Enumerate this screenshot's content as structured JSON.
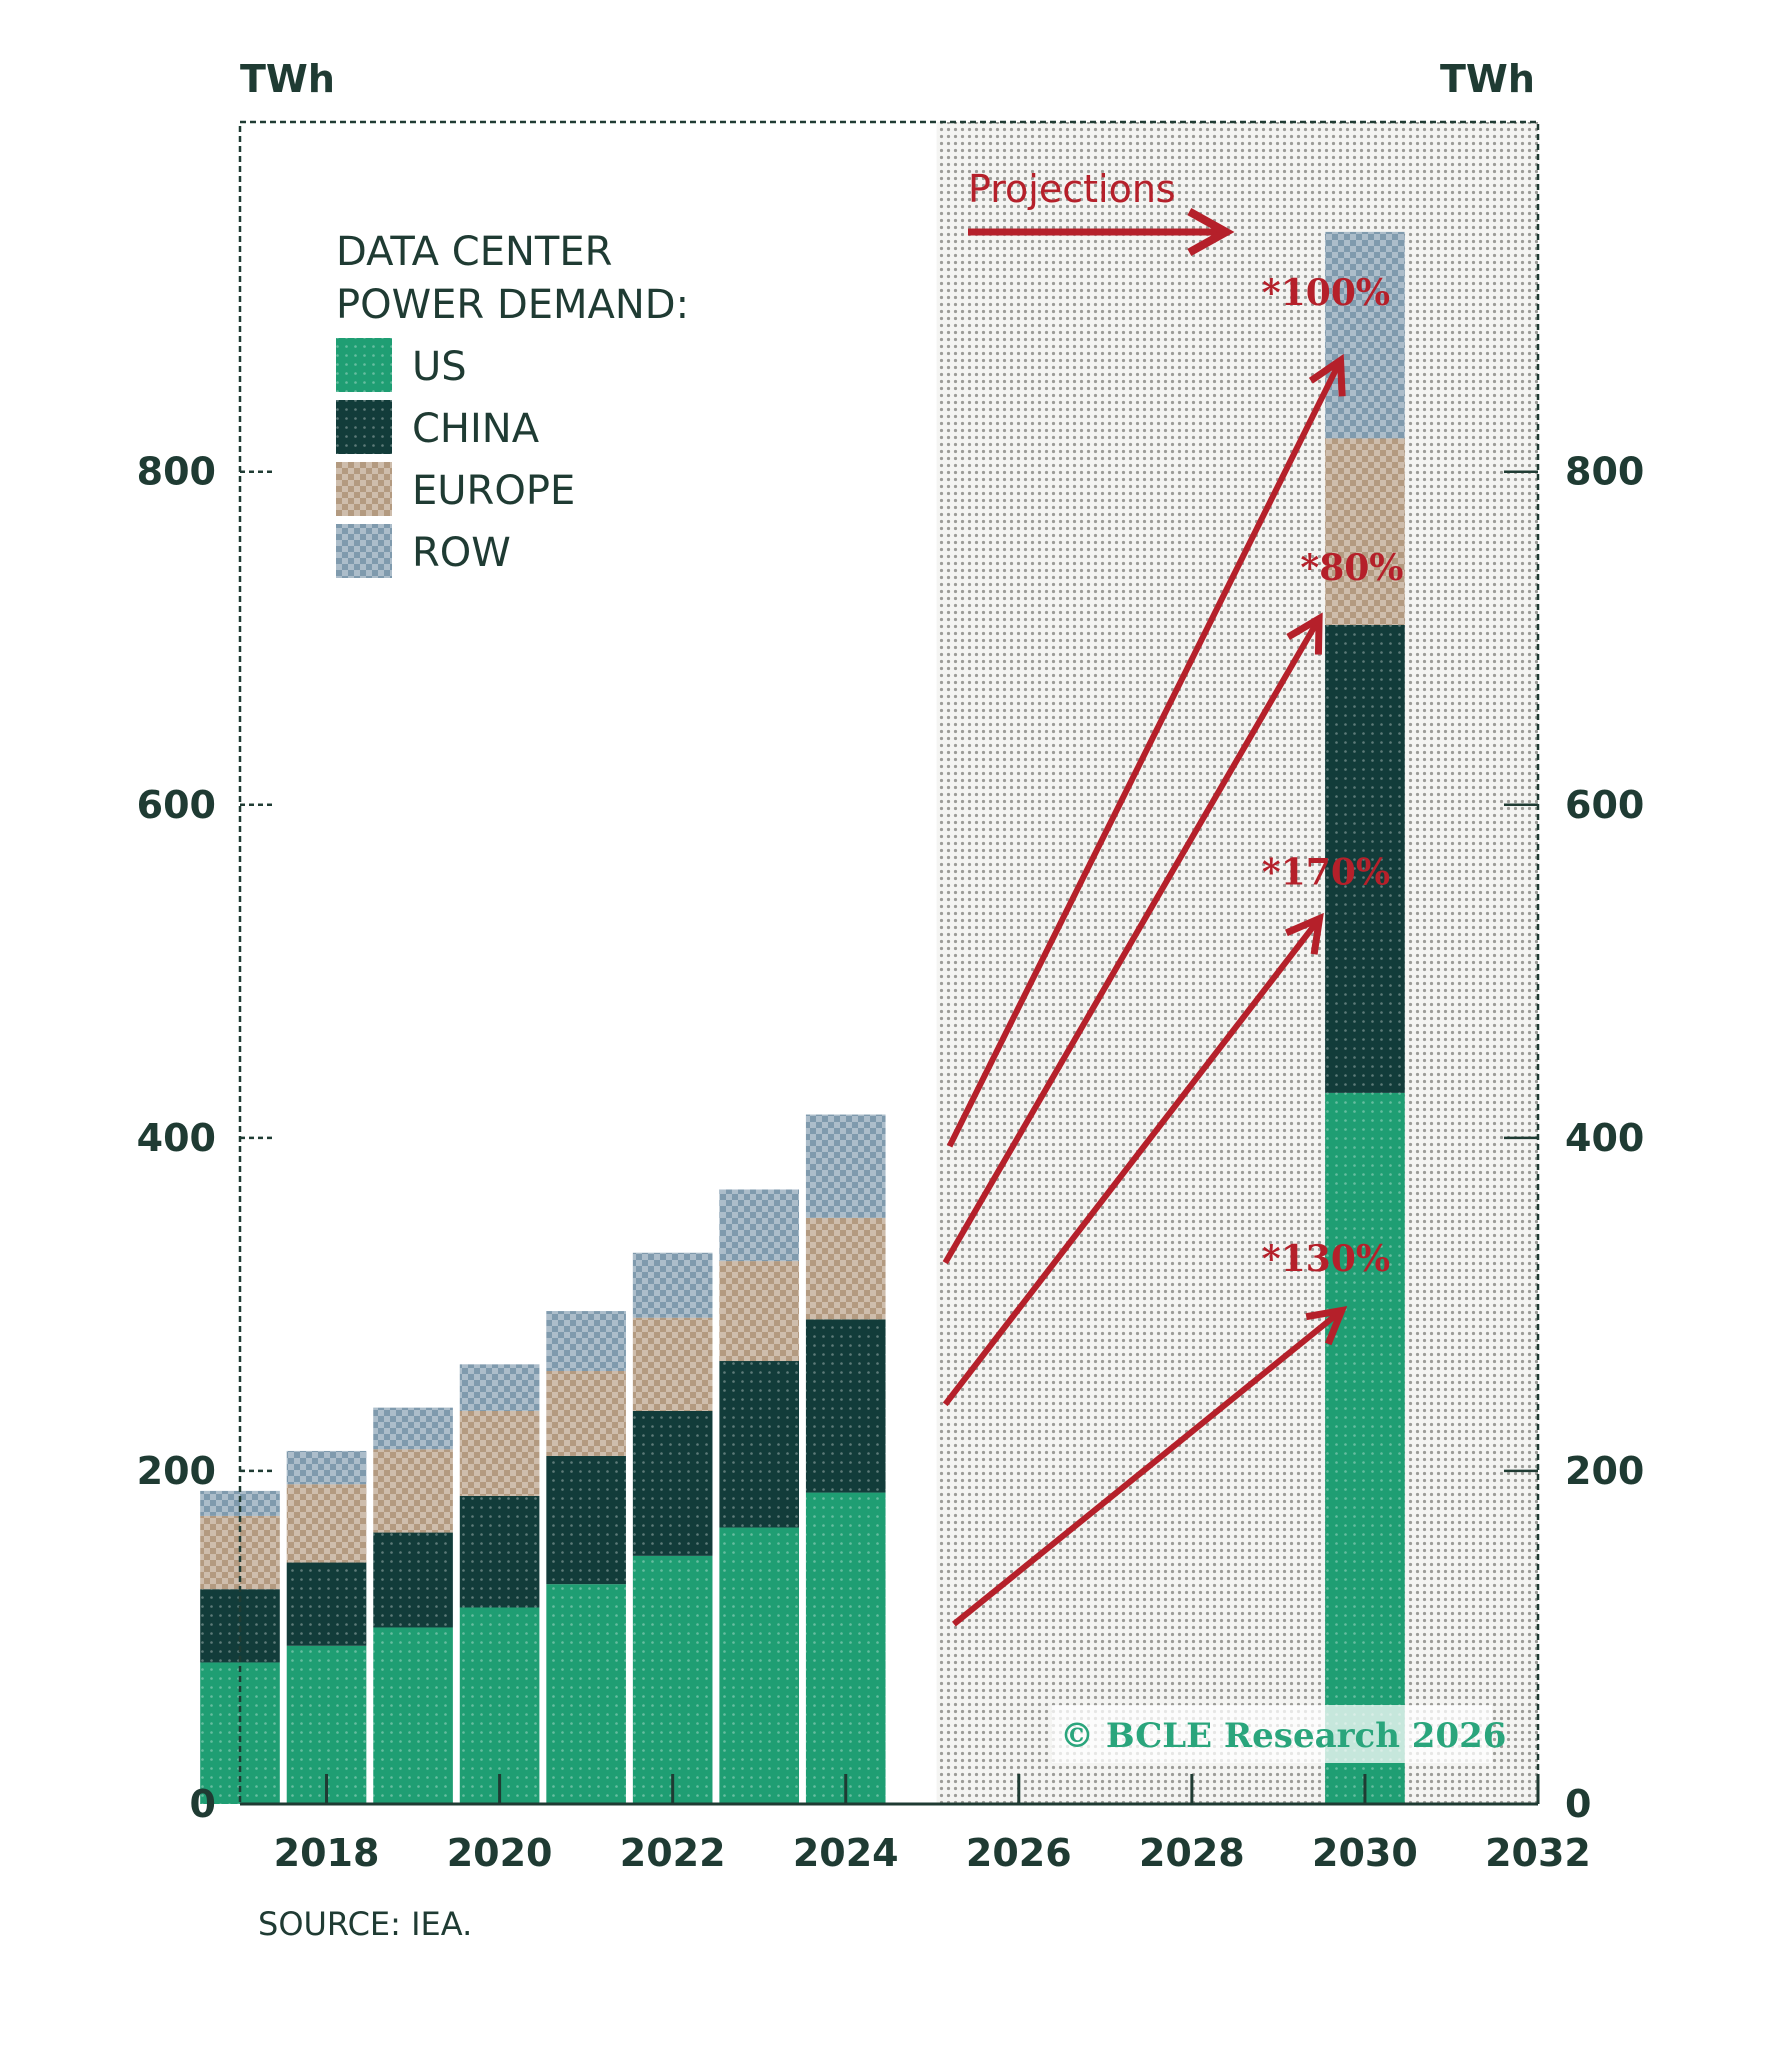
{
  "chart_data": {
    "type": "bar",
    "stacked": true,
    "unit_left": "TWh",
    "unit_right": "TWh",
    "legend_title_line1": "DATA CENTER",
    "legend_title_line2": "POWER DEMAND:",
    "legend_placement": "top-left",
    "x_ticks": [
      "2018",
      "2020",
      "2022",
      "2024",
      "2026",
      "2028",
      "2030",
      "2032"
    ],
    "y_ticks": [
      "0",
      "200",
      "400",
      "600",
      "800"
    ],
    "y_tick_values": [
      0,
      200,
      400,
      600,
      800
    ],
    "ylim": [
      0,
      1010
    ],
    "xlim": [
      2017,
      2032
    ],
    "categories": [
      2017,
      2018,
      2019,
      2020,
      2021,
      2022,
      2023,
      2024,
      2030
    ],
    "series": [
      {
        "name": "US",
        "color": "#1f9e73",
        "values": [
          85,
          95,
          106,
          118,
          132,
          149,
          166,
          187,
          427
        ]
      },
      {
        "name": "CHINA",
        "color": "#123c3a",
        "values": [
          44,
          50,
          57,
          67,
          77,
          87,
          100,
          104,
          281
        ]
      },
      {
        "name": "EUROPE",
        "color": "#b39a80",
        "values": [
          44,
          47,
          50,
          51,
          51,
          56,
          60,
          61,
          112
        ]
      },
      {
        "name": "ROW",
        "color": "#7f9aad",
        "values": [
          15,
          20,
          25,
          28,
          36,
          39,
          43,
          62,
          124
        ]
      }
    ],
    "projection_start": 2025.05,
    "projection_label": "Projections",
    "growth_annotations": [
      {
        "label": "*100%",
        "x": 2029.55,
        "y": 900
      },
      {
        "label": "*80%",
        "x": 2029.85,
        "y": 735
      },
      {
        "label": "*170%",
        "x": 2029.55,
        "y": 552
      },
      {
        "label": "*130%",
        "x": 2029.55,
        "y": 320
      }
    ],
    "growth_arrows": [
      {
        "from": [
          2025.2,
          395
        ],
        "to": [
          2029.7,
          865
        ]
      },
      {
        "from": [
          2025.15,
          325
        ],
        "to": [
          2029.45,
          710
        ]
      },
      {
        "from": [
          2025.15,
          240
        ],
        "to": [
          2029.45,
          530
        ]
      },
      {
        "from": [
          2025.25,
          108
        ],
        "to": [
          2029.7,
          295
        ]
      }
    ],
    "source": "SOURCE: IEA.",
    "watermark": "© BCLE Research 2026",
    "grid": false
  }
}
